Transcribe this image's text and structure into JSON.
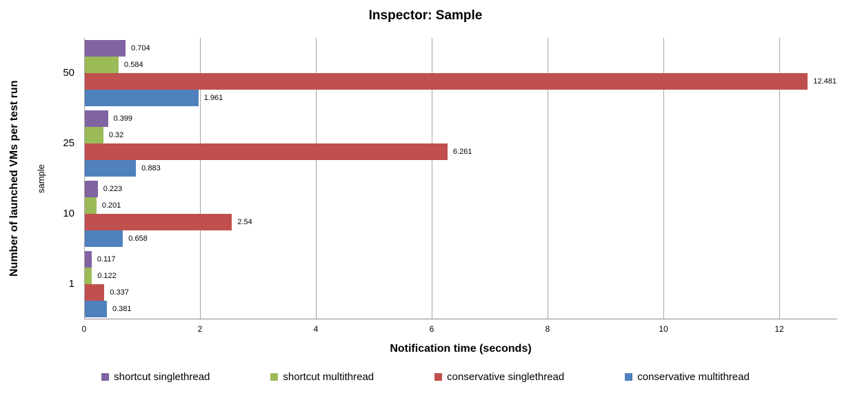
{
  "chart_data": {
    "type": "bar",
    "orientation": "horizontal",
    "title": "Inspector: Sample",
    "xlabel": "Notification time (seconds)",
    "ylabel": "Number of launched VMs per test run",
    "axis_field_label": "sample",
    "categories": [
      "50",
      "25",
      "10",
      "1"
    ],
    "series": [
      {
        "name": "shortcut singlethread",
        "color": "#8064A2",
        "values": [
          0.704,
          0.399,
          0.223,
          0.117
        ],
        "labels": [
          "0.704",
          "0.399",
          "0.223",
          "0.117"
        ]
      },
      {
        "name": "shortcut multithread",
        "color": "#9BBB59",
        "values": [
          0.584,
          0.32,
          0.201,
          0.122
        ],
        "labels": [
          "0.584",
          "0.32",
          "0.201",
          "0.122"
        ]
      },
      {
        "name": "conservative singlethread",
        "color": "#C0504D",
        "values": [
          12.481,
          6.261,
          2.54,
          0.337
        ],
        "labels": [
          "12.481",
          "6.261",
          "2.54",
          "0.337"
        ]
      },
      {
        "name": "conservative multithread",
        "color": "#4F81BD",
        "values": [
          1.961,
          0.883,
          0.658,
          0.381
        ],
        "labels": [
          "1.961",
          "0.883",
          "0.658",
          "0.381"
        ]
      }
    ],
    "xlim": [
      0,
      13
    ],
    "xticks": [
      0,
      2,
      4,
      6,
      8,
      10,
      12
    ],
    "grid": true,
    "legend_position": "bottom",
    "grid_color": "#A6A6A6",
    "axis_color": "#8C8C8C"
  }
}
